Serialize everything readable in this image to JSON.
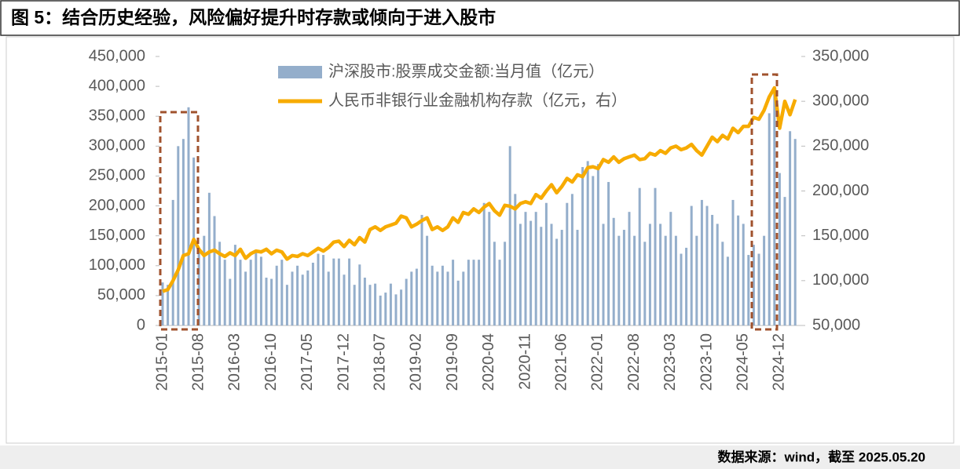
{
  "chart_data": {
    "type": "bar_line",
    "title": "图 5：结合历史经验，风险偏好提升时存款或倾向于进入股市",
    "source": "数据来源：wind，截至 2025.05.20",
    "categories": [
      "2015-01",
      null,
      null,
      null,
      null,
      null,
      null,
      "2015-08",
      null,
      null,
      null,
      null,
      null,
      null,
      "2016-03",
      null,
      null,
      null,
      null,
      null,
      null,
      "2016-10",
      null,
      null,
      null,
      null,
      null,
      null,
      "2017-05",
      null,
      null,
      null,
      null,
      null,
      null,
      "2017-12",
      null,
      null,
      null,
      null,
      null,
      null,
      "2018-07",
      null,
      null,
      null,
      null,
      null,
      null,
      "2019-02",
      null,
      null,
      null,
      null,
      null,
      null,
      "2019-09",
      null,
      null,
      null,
      null,
      null,
      null,
      "2020-04",
      null,
      null,
      null,
      null,
      null,
      null,
      "2020-11",
      null,
      null,
      null,
      null,
      null,
      null,
      "2021-06",
      null,
      null,
      null,
      null,
      null,
      null,
      "2022-01",
      null,
      null,
      null,
      null,
      null,
      null,
      "2022-08",
      null,
      null,
      null,
      null,
      null,
      null,
      "2023-03",
      null,
      null,
      null,
      null,
      null,
      null,
      "2023-10",
      null,
      null,
      null,
      null,
      null,
      null,
      "2024-05",
      null,
      null,
      null,
      null,
      null,
      null,
      "2024-12",
      null,
      null,
      null
    ],
    "series": [
      {
        "name": "沪深股市:股票成交金额:当月值（亿元）",
        "color": "#94aecb",
        "kind": "bar",
        "axis": "y",
        "values": [
          72000,
          68000,
          210000,
          300000,
          312000,
          365000,
          281000,
          130000,
          150000,
          222000,
          183000,
          140000,
          110000,
          78000,
          135000,
          110000,
          90000,
          110000,
          125000,
          115000,
          80000,
          78000,
          100000,
          110000,
          68000,
          90000,
          100000,
          85000,
          92000,
          105000,
          120000,
          118000,
          90000,
          112000,
          112000,
          85000,
          112000,
          68000,
          102000,
          80000,
          68000,
          70000,
          50000,
          55000,
          70000,
          52000,
          60000,
          78000,
          90000,
          95000,
          185000,
          150000,
          100000,
          90000,
          100000,
          90000,
          110000,
          75000,
          90000,
          110000,
          110000,
          110000,
          205000,
          190000,
          140000,
          110000,
          140000,
          300000,
          220000,
          170000,
          190000,
          175000,
          190000,
          165000,
          205000,
          170000,
          145000,
          160000,
          205000,
          220000,
          160000,
          265000,
          275000,
          250000,
          270000,
          170000,
          240000,
          180000,
          150000,
          160000,
          190000,
          150000,
          230000,
          140000,
          170000,
          230000,
          170000,
          150000,
          190000,
          150000,
          120000,
          130000,
          200000,
          150000,
          210000,
          200000,
          185000,
          170000,
          140000,
          115000,
          210000,
          184000,
          170000,
          118000,
          135000,
          120000,
          150000,
          355000,
          400000,
          255000,
          215000,
          325000,
          312000
        ]
      },
      {
        "name": "人民币非银行业金融机构存款（亿元，右）",
        "color": "#f7ab00",
        "kind": "line",
        "axis": "y2",
        "values": [
          88000,
          90000,
          100000,
          112000,
          128000,
          130000,
          146000,
          135000,
          128000,
          132000,
          134000,
          130000,
          127000,
          131000,
          128000,
          135000,
          125000,
          130000,
          133000,
          132000,
          135000,
          130000,
          134000,
          132000,
          124000,
          128000,
          127000,
          130000,
          128000,
          132000,
          136000,
          133000,
          137000,
          143000,
          144000,
          138000,
          145000,
          140000,
          148000,
          143000,
          157000,
          160000,
          156000,
          160000,
          162000,
          164000,
          172000,
          170000,
          160000,
          163000,
          167000,
          170000,
          157000,
          160000,
          156000,
          160000,
          170000,
          165000,
          176000,
          174000,
          180000,
          176000,
          182000,
          186000,
          178000,
          173000,
          184000,
          183000,
          180000,
          186000,
          188000,
          186000,
          196000,
          192000,
          200000,
          207000,
          198000,
          205000,
          214000,
          210000,
          218000,
          216000,
          226000,
          227000,
          225000,
          235000,
          232000,
          238000,
          232000,
          236000,
          238000,
          240000,
          235000,
          236000,
          242000,
          240000,
          245000,
          242000,
          248000,
          250000,
          246000,
          248000,
          252000,
          245000,
          240000,
          250000,
          260000,
          255000,
          262000,
          258000,
          270000,
          265000,
          272000,
          272000,
          282000,
          280000,
          290000,
          305000,
          315000,
          270000,
          300000,
          285000,
          302000
        ]
      }
    ],
    "ylim": [
      0,
      450000
    ],
    "yticks": [
      0,
      {
        "value": 50000,
        "label": "50,000"
      },
      {
        "value": 100000,
        "label": "100,000"
      },
      {
        "value": 150000,
        "label": "150,000"
      },
      {
        "value": 200000,
        "label": "200,000"
      },
      {
        "value": 250000,
        "label": "250,000"
      },
      {
        "value": 300000,
        "label": "300,000"
      },
      {
        "value": 350000,
        "label": "350,000"
      },
      {
        "value": 400000,
        "label": "400,000"
      },
      {
        "value": 450000,
        "label": "450,000"
      }
    ],
    "y2lim": [
      50000,
      350000
    ],
    "y2ticks": [
      {
        "value": 50000,
        "label": "50,000"
      },
      {
        "value": 100000,
        "label": "100,000"
      },
      {
        "value": 150000,
        "label": "150,000"
      },
      {
        "value": 200000,
        "label": "200,000"
      },
      {
        "value": 250000,
        "label": "250,000"
      },
      {
        "value": 300000,
        "label": "300,000"
      },
      {
        "value": 350000,
        "label": "350,000"
      }
    ]
  }
}
